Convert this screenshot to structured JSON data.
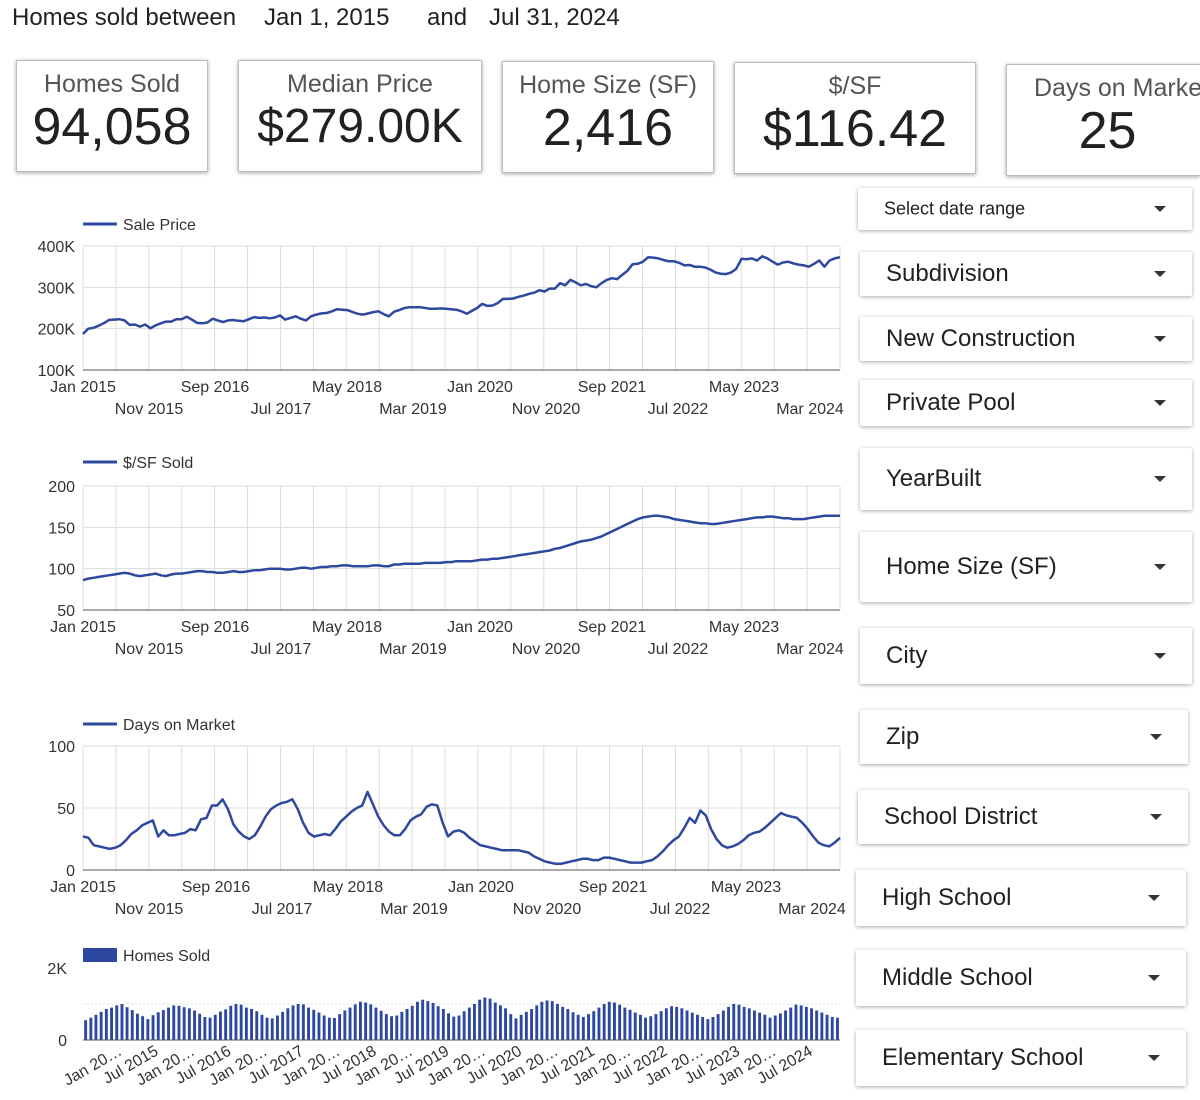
{
  "header": {
    "prefix": "Homes sold between",
    "start_date": "Jan 1, 2015",
    "conjunction": "and",
    "end_date": "Jul 31, 2024"
  },
  "scorecards": [
    {
      "label": "Homes Sold",
      "value": "94,058"
    },
    {
      "label": "Median Price",
      "value": "$279.00K"
    },
    {
      "label": "Home Size (SF)",
      "value": "2,416"
    },
    {
      "label": "$/SF",
      "value": "$116.42"
    },
    {
      "label": "Days on Market",
      "value": "25"
    }
  ],
  "filters": [
    {
      "label": "Select date range"
    },
    {
      "label": "Subdivision"
    },
    {
      "label": "New Construction"
    },
    {
      "label": "Private Pool"
    },
    {
      "label": "YearBuilt"
    },
    {
      "label": "Home Size (SF)"
    },
    {
      "label": "City"
    },
    {
      "label": "Zip"
    },
    {
      "label": "School District"
    },
    {
      "label": "High School"
    },
    {
      "label": "Middle School"
    },
    {
      "label": "Elementary School"
    }
  ],
  "colors": {
    "series": "#2e48a0",
    "grid": "#dcdcdc",
    "axis": "#333333"
  },
  "chart_data": [
    {
      "type": "line",
      "legend": "Sale Price",
      "legend_position": "top-left",
      "grid": true,
      "ylim": [
        100000,
        400000
      ],
      "y_ticks": [
        100000,
        200000,
        300000,
        400000
      ],
      "y_tick_labels": [
        "100K",
        "200K",
        "300K",
        "400K"
      ],
      "x_start": "Jan 2015",
      "x_end": "Jul 2024",
      "x_tick_labels_row1": [
        "Jan 2015",
        "Sep 2016",
        "May 2018",
        "Jan 2020",
        "Sep 2021",
        "May 2023"
      ],
      "x_tick_labels_row2": [
        "Nov 2015",
        "Jul 2017",
        "Mar 2019",
        "Nov 2020",
        "Jul 2022",
        "Mar 2024"
      ],
      "values": [
        187000,
        200000,
        202000,
        207000,
        213000,
        221000,
        222000,
        223000,
        220000,
        209000,
        210000,
        205000,
        210000,
        201000,
        208000,
        213000,
        217000,
        217000,
        223000,
        223000,
        229000,
        222000,
        214000,
        213000,
        215000,
        224000,
        220000,
        216000,
        220000,
        221000,
        219000,
        218000,
        223000,
        228000,
        226000,
        227000,
        225000,
        227000,
        232000,
        222000,
        226000,
        230000,
        224000,
        220000,
        230000,
        234000,
        237000,
        238000,
        242000,
        247000,
        246000,
        245000,
        240000,
        236000,
        234000,
        237000,
        240000,
        242000,
        235000,
        230000,
        241000,
        245000,
        250000,
        252000,
        252000,
        252000,
        250000,
        248000,
        248000,
        249000,
        248000,
        247000,
        246000,
        242000,
        236000,
        243000,
        250000,
        260000,
        255000,
        256000,
        262000,
        272000,
        272000,
        273000,
        277000,
        280000,
        284000,
        287000,
        293000,
        290000,
        297000,
        297000,
        310000,
        305000,
        318000,
        312000,
        305000,
        308000,
        303000,
        300000,
        310000,
        318000,
        322000,
        320000,
        330000,
        340000,
        356000,
        357000,
        362000,
        373000,
        372000,
        370000,
        366000,
        363000,
        363000,
        359000,
        353000,
        354000,
        350000,
        350000,
        348000,
        343000,
        336000,
        333000,
        332000,
        336000,
        345000,
        369000,
        368000,
        370000,
        365000,
        375000,
        370000,
        362000,
        355000,
        360000,
        362000,
        358000,
        355000,
        353000,
        350000,
        357000,
        365000,
        350000,
        365000,
        370000,
        373000
      ]
    },
    {
      "type": "line",
      "legend": "$/SF Sold",
      "legend_position": "top-left",
      "grid": true,
      "ylim": [
        50,
        200
      ],
      "y_ticks": [
        50,
        100,
        150,
        200
      ],
      "y_tick_labels": [
        "50",
        "100",
        "150",
        "200"
      ],
      "x_start": "Jan 2015",
      "x_end": "Jul 2024",
      "x_tick_labels_row1": [
        "Jan 2015",
        "Sep 2016",
        "May 2018",
        "Jan 2020",
        "Sep 2021",
        "May 2023"
      ],
      "x_tick_labels_row2": [
        "Nov 2015",
        "Jul 2017",
        "Mar 2019",
        "Nov 2020",
        "Jul 2022",
        "Mar 2024"
      ],
      "values": [
        86,
        88,
        89,
        90,
        91,
        92,
        93,
        94,
        95,
        94,
        92,
        91,
        92,
        93,
        94,
        92,
        91,
        93,
        94,
        94,
        95,
        96,
        97,
        97,
        96,
        96,
        95,
        95,
        96,
        97,
        96,
        96,
        97,
        98,
        98,
        99,
        100,
        100,
        100,
        99,
        99,
        100,
        101,
        101,
        100,
        101,
        102,
        102,
        103,
        103,
        104,
        104,
        103,
        103,
        103,
        103,
        104,
        104,
        103,
        103,
        105,
        105,
        106,
        106,
        106,
        106,
        107,
        107,
        107,
        107,
        108,
        108,
        109,
        109,
        109,
        109,
        110,
        111,
        111,
        112,
        112,
        113,
        114,
        115,
        116,
        117,
        118,
        119,
        120,
        121,
        122,
        124,
        125,
        127,
        129,
        131,
        133,
        134,
        135,
        137,
        139,
        142,
        145,
        148,
        151,
        154,
        157,
        160,
        162,
        163,
        164,
        164,
        163,
        162,
        160,
        159,
        158,
        157,
        156,
        155,
        155,
        154,
        154,
        155,
        156,
        157,
        158,
        159,
        160,
        161,
        162,
        162,
        163,
        163,
        162,
        161,
        161,
        160,
        160,
        160,
        161,
        162,
        163,
        164,
        164,
        164,
        164
      ]
    },
    {
      "type": "line",
      "legend": "Days on Market",
      "legend_position": "top-left",
      "grid": true,
      "ylim": [
        0,
        100
      ],
      "y_ticks": [
        0,
        50,
        100
      ],
      "y_tick_labels": [
        "0",
        "50",
        "100"
      ],
      "x_start": "Jan 2015",
      "x_end": "Jul 2024",
      "x_tick_labels_row1": [
        "Jan 2015",
        "Sep 2016",
        "May 2018",
        "Jan 2020",
        "Sep 2021",
        "May 2023"
      ],
      "x_tick_labels_row2": [
        "Nov 2015",
        "Jul 2017",
        "Mar 2019",
        "Nov 2020",
        "Jul 2022",
        "Mar 2024"
      ],
      "values": [
        27,
        26,
        20,
        19,
        18,
        17,
        18,
        20,
        24,
        29,
        32,
        36,
        38,
        40,
        27,
        32,
        28,
        28,
        29,
        30,
        33,
        32,
        41,
        42,
        52,
        52,
        57,
        49,
        37,
        31,
        27,
        25,
        28,
        35,
        43,
        49,
        52,
        54,
        55,
        57,
        49,
        38,
        30,
        27,
        28,
        29,
        28,
        33,
        39,
        43,
        47,
        50,
        52,
        63,
        53,
        43,
        36,
        31,
        28,
        28,
        33,
        40,
        43,
        45,
        51,
        53,
        52,
        38,
        27,
        31,
        32,
        30,
        26,
        23,
        20,
        19,
        18,
        17,
        16,
        16,
        16,
        16,
        15,
        14,
        11,
        9,
        7,
        6,
        5,
        5,
        6,
        7,
        8,
        9,
        9,
        8,
        8,
        10,
        10,
        9,
        8,
        7,
        6,
        6,
        6,
        7,
        8,
        11,
        15,
        20,
        24,
        27,
        34,
        42,
        38,
        48,
        44,
        33,
        25,
        20,
        18,
        19,
        21,
        24,
        28,
        30,
        31,
        34,
        38,
        42,
        46,
        44,
        43,
        42,
        38,
        33,
        27,
        22,
        20,
        19,
        22,
        26
      ]
    },
    {
      "type": "bar",
      "legend": "Homes Sold",
      "legend_position": "top-left",
      "grid": false,
      "ylim": [
        0,
        2000
      ],
      "y_ticks": [
        0,
        2000
      ],
      "y_tick_labels": [
        "0",
        "2K"
      ],
      "x_tick_labels": [
        "Jan 20…",
        "Jul 2015",
        "Jan 20…",
        "Jul 2016",
        "Jan 20…",
        "Jul 2017",
        "Jan 20…",
        "Jul 2018",
        "Jan 20…",
        "Jul 2019",
        "Jan 20…",
        "Jul 2020",
        "Jan 20…",
        "Jul 2021",
        "Jan 20…",
        "Jul 2022",
        "Jan 20…",
        "Jul 2023",
        "Jan 20…",
        "Jul 2024"
      ],
      "values": [
        550,
        620,
        700,
        780,
        860,
        900,
        960,
        1000,
        910,
        830,
        730,
        660,
        580,
        690,
        770,
        830,
        900,
        960,
        950,
        910,
        880,
        820,
        730,
        640,
        620,
        700,
        790,
        850,
        950,
        1000,
        980,
        900,
        860,
        800,
        700,
        620,
        600,
        680,
        780,
        880,
        960,
        1000,
        990,
        900,
        840,
        760,
        680,
        620,
        610,
        720,
        820,
        900,
        990,
        1060,
        1040,
        990,
        900,
        810,
        720,
        660,
        680,
        780,
        860,
        950,
        1060,
        1120,
        1080,
        1030,
        940,
        860,
        740,
        650,
        680,
        800,
        900,
        1000,
        1120,
        1180,
        1150,
        1040,
        960,
        880,
        720,
        600,
        700,
        780,
        860,
        960,
        1060,
        1100,
        1080,
        1000,
        920,
        860,
        770,
        700,
        640,
        720,
        800,
        900,
        1000,
        1060,
        1040,
        980,
        900,
        840,
        760,
        700,
        620,
        660,
        720,
        800,
        880,
        940,
        920,
        880,
        820,
        760,
        700,
        640,
        580,
        640,
        720,
        820,
        920,
        1000,
        980,
        920,
        880,
        820,
        760,
        700,
        620,
        680,
        740,
        820,
        900,
        980,
        960,
        920,
        880,
        820,
        760,
        700,
        640,
        620
      ]
    }
  ]
}
